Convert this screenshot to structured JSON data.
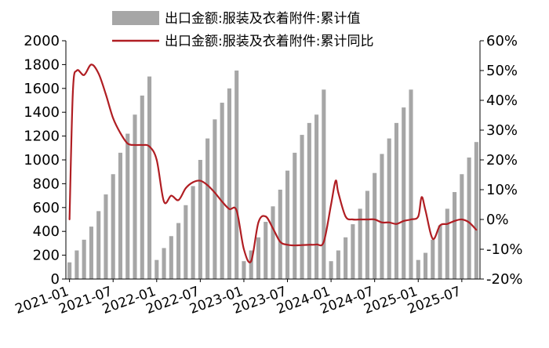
{
  "chart_data": {
    "type": "bar+line",
    "legend": [
      {
        "label": "出口金额:服装及衣着附件:累计值",
        "kind": "bar",
        "color": "#a6a6a6"
      },
      {
        "label": "出口金额:服装及衣着附件:累计同比",
        "kind": "line",
        "color": "#b01e23"
      }
    ],
    "legend_position": "top-center",
    "y_left": {
      "min": 0,
      "max": 2000,
      "ticks": [
        "0",
        "200",
        "400",
        "600",
        "800",
        "1000",
        "1200",
        "1400",
        "1600",
        "1800",
        "2000"
      ]
    },
    "y_right": {
      "min": -20,
      "max": 60,
      "ticks": [
        "-20%",
        "-10%",
        "0%",
        "10%",
        "20%",
        "30%",
        "40%",
        "50%",
        "60%"
      ]
    },
    "x_ticks": [
      "2021-01",
      "2021-07",
      "2022-01",
      "2022-07",
      "2023-01",
      "2023-07",
      "2024-01",
      "2024-07",
      "2025-01",
      "2025-07"
    ],
    "bars": {
      "name": "出口金额:服装及衣着附件:累计值",
      "periods": [
        "2021-01",
        "2021-02",
        "2021-03",
        "2021-04",
        "2021-05",
        "2021-06",
        "2021-07",
        "2021-08",
        "2021-09",
        "2021-10",
        "2021-11",
        "2021-12",
        "2022-01",
        "2022-02",
        "2022-03",
        "2022-04",
        "2022-05",
        "2022-06",
        "2022-07",
        "2022-08",
        "2022-09",
        "2022-10",
        "2022-11",
        "2022-12",
        "2023-01",
        "2023-02",
        "2023-03",
        "2023-04",
        "2023-05",
        "2023-06",
        "2023-07",
        "2023-08",
        "2023-09",
        "2023-10",
        "2023-11",
        "2023-12",
        "2024-01",
        "2024-02",
        "2024-03",
        "2024-04",
        "2024-05",
        "2024-06",
        "2024-07",
        "2024-08",
        "2024-09",
        "2024-10",
        "2024-11",
        "2024-12",
        "2025-01",
        "2025-02",
        "2025-03",
        "2025-04",
        "2025-05",
        "2025-06",
        "2025-07",
        "2025-08",
        "2025-09"
      ],
      "values": [
        140,
        240,
        330,
        440,
        570,
        710,
        880,
        1060,
        1220,
        1380,
        1540,
        1700,
        160,
        260,
        360,
        470,
        620,
        780,
        1000,
        1180,
        1340,
        1480,
        1600,
        1750,
        150,
        240,
        350,
        480,
        610,
        750,
        910,
        1060,
        1210,
        1310,
        1380,
        1590,
        150,
        240,
        350,
        460,
        590,
        740,
        890,
        1050,
        1180,
        1310,
        1440,
        1590,
        160,
        220,
        330,
        450,
        590,
        730,
        880,
        1020,
        1150
      ]
    },
    "line": {
      "name": "出口金额:服装及衣着附件:累计同比",
      "points": [
        {
          "x": "2021-01",
          "y": 0
        },
        {
          "x": "2021-01-15",
          "y": 43
        },
        {
          "x": "2021-02",
          "y": 50
        },
        {
          "x": "2021-03",
          "y": 48.5
        },
        {
          "x": "2021-04",
          "y": 52
        },
        {
          "x": "2021-05",
          "y": 49
        },
        {
          "x": "2021-06",
          "y": 42
        },
        {
          "x": "2021-07",
          "y": 34
        },
        {
          "x": "2021-08",
          "y": 29
        },
        {
          "x": "2021-09",
          "y": 25.5
        },
        {
          "x": "2021-10",
          "y": 25
        },
        {
          "x": "2021-11",
          "y": 25
        },
        {
          "x": "2021-12",
          "y": 24.5
        },
        {
          "x": "2022-01",
          "y": 20
        },
        {
          "x": "2022-02",
          "y": 6
        },
        {
          "x": "2022-03",
          "y": 8
        },
        {
          "x": "2022-04",
          "y": 6.5
        },
        {
          "x": "2022-05",
          "y": 10.5
        },
        {
          "x": "2022-06",
          "y": 12.5
        },
        {
          "x": "2022-07",
          "y": 13
        },
        {
          "x": "2022-08",
          "y": 11.5
        },
        {
          "x": "2022-09",
          "y": 9
        },
        {
          "x": "2022-10",
          "y": 6
        },
        {
          "x": "2022-11",
          "y": 3.5
        },
        {
          "x": "2022-12",
          "y": 3
        },
        {
          "x": "2023-01",
          "y": -10
        },
        {
          "x": "2023-02",
          "y": -14
        },
        {
          "x": "2023-03",
          "y": -1
        },
        {
          "x": "2023-04",
          "y": 1
        },
        {
          "x": "2023-05",
          "y": -3
        },
        {
          "x": "2023-06",
          "y": -7.5
        },
        {
          "x": "2023-07",
          "y": -8.5
        },
        {
          "x": "2023-08",
          "y": -8.7
        },
        {
          "x": "2023-09",
          "y": -8.6
        },
        {
          "x": "2023-10",
          "y": -8.5
        },
        {
          "x": "2023-11",
          "y": -8.4
        },
        {
          "x": "2023-12",
          "y": -7.5
        },
        {
          "x": "2024-01",
          "y": 5
        },
        {
          "x": "2024-01-20",
          "y": 13
        },
        {
          "x": "2024-02",
          "y": 9
        },
        {
          "x": "2024-03",
          "y": 1
        },
        {
          "x": "2024-04",
          "y": 0
        },
        {
          "x": "2024-05",
          "y": 0
        },
        {
          "x": "2024-06",
          "y": 0
        },
        {
          "x": "2024-07",
          "y": 0
        },
        {
          "x": "2024-08",
          "y": -1
        },
        {
          "x": "2024-09",
          "y": -1
        },
        {
          "x": "2024-10",
          "y": -1.5
        },
        {
          "x": "2024-11",
          "y": -0.5
        },
        {
          "x": "2024-12",
          "y": 0
        },
        {
          "x": "2025-01",
          "y": 1
        },
        {
          "x": "2025-01-15",
          "y": 7.5
        },
        {
          "x": "2025-02",
          "y": 3
        },
        {
          "x": "2025-03",
          "y": -6.5
        },
        {
          "x": "2025-04",
          "y": -2
        },
        {
          "x": "2025-05",
          "y": -1.5
        },
        {
          "x": "2025-06",
          "y": -0.5
        },
        {
          "x": "2025-07",
          "y": 0
        },
        {
          "x": "2025-08",
          "y": -1
        },
        {
          "x": "2025-09",
          "y": -3.5
        }
      ]
    }
  }
}
